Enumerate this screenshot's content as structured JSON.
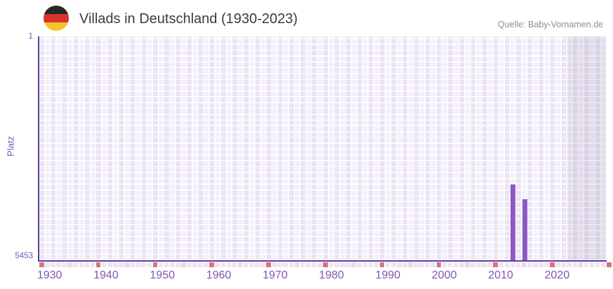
{
  "header": {
    "title": "Villads in Deutschland (1930-2023)",
    "source": "Quelle: Baby-Vornamen.de",
    "flag": {
      "country": "Germany",
      "stripe_colors": [
        "#262626",
        "#d6342c",
        "#f6c32d"
      ]
    }
  },
  "chart_data": {
    "type": "bar",
    "title": "Villads in Deutschland (1930-2023)",
    "ylabel": "Platz",
    "y_axis": {
      "top_label": "1",
      "bottom_label": "5453",
      "min": 1,
      "max": 5453,
      "inverted": true
    },
    "x_axis": {
      "min_year": 1930,
      "max_year": 2023,
      "tick_years": [
        1930,
        1940,
        1950,
        1960,
        1970,
        1980,
        1990,
        2000,
        2010,
        2020
      ]
    },
    "series": [
      {
        "name": "Platz",
        "points": [
          {
            "year": 2013,
            "rank": 3612
          },
          {
            "year": 2015,
            "rank": 3971
          }
        ]
      }
    ],
    "bar_color": "#8f58c5",
    "grid": true,
    "legend_position": "none",
    "shaded_recent_band": true
  },
  "axis_strip": {
    "decade_color": "#dd7083",
    "middecade_color": "#eed7e2",
    "base_color": "#ebe5f4",
    "cells": 101
  }
}
